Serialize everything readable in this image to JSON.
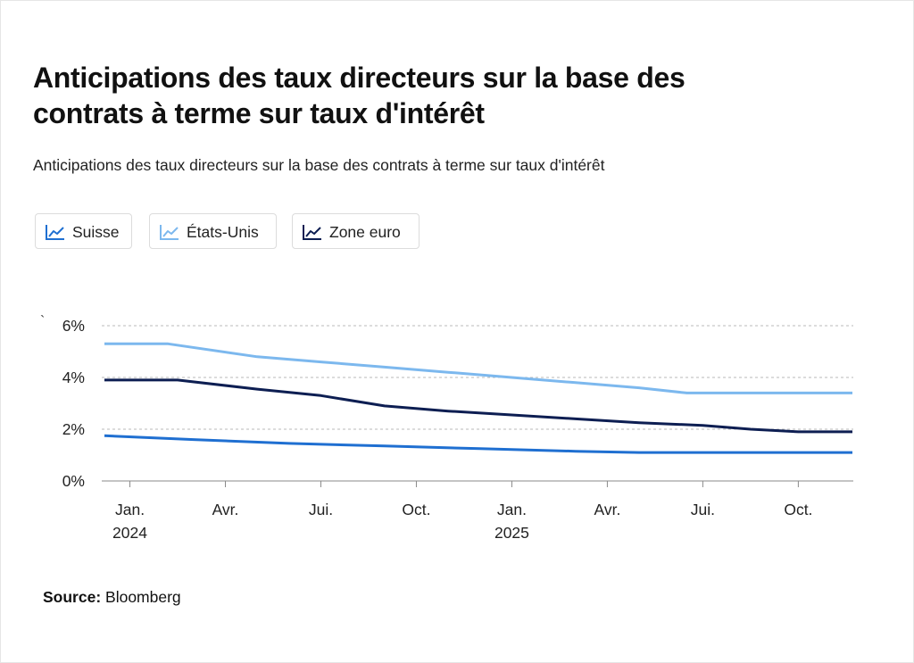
{
  "title": "Anticipations des taux directeurs sur la base des contrats à terme sur taux d'intérêt",
  "subtitle": "Anticipations des taux directeurs sur la base des contrats à terme sur taux d'intérêt",
  "legend": [
    {
      "label": "Suisse",
      "color": "#1f6fd1",
      "icon": "line-chart-icon"
    },
    {
      "label": "États-Unis",
      "color": "#7cb8ee",
      "icon": "line-chart-icon"
    },
    {
      "label": "Zone euro",
      "color": "#0d1e52",
      "icon": "line-chart-icon"
    }
  ],
  "source": {
    "label": "Source:",
    "value": "Bloomberg"
  },
  "chart_data": {
    "type": "line",
    "title": "Anticipations des taux directeurs sur la base des contrats à terme sur taux d'intérêt",
    "stray_mark": "`",
    "y_unit": "%",
    "ylim": [
      0,
      6
    ],
    "y_ticks": [
      {
        "value": 0,
        "label": "0%"
      },
      {
        "value": 2,
        "label": "2%"
      },
      {
        "value": 4,
        "label": "4%"
      },
      {
        "value": 6,
        "label": "6%"
      }
    ],
    "y_grid": "dotted",
    "x_ticks": [
      {
        "month": 1,
        "label": "Jan.",
        "sub": "2024"
      },
      {
        "month": 4,
        "label": "Avr.",
        "sub": ""
      },
      {
        "month": 7,
        "label": "Jui.",
        "sub": ""
      },
      {
        "month": 10,
        "label": "Oct.",
        "sub": ""
      },
      {
        "month": 13,
        "label": "Jan.",
        "sub": "2025"
      },
      {
        "month": 16,
        "label": "Avr.",
        "sub": ""
      },
      {
        "month": 19,
        "label": "Jui.",
        "sub": ""
      },
      {
        "month": 22,
        "label": "Oct.",
        "sub": ""
      }
    ],
    "x_unit": "month index (1 = Jan. 2024)",
    "xlim": [
      0.2,
      23.7
    ],
    "series": [
      {
        "name": "États-Unis",
        "color": "#7cb8ee",
        "x": [
          0.2,
          2.2,
          5.0,
          7.0,
          9.0,
          11.0,
          13.0,
          15.0,
          17.0,
          18.5,
          20.0,
          22.0,
          23.7
        ],
        "y": [
          5.3,
          5.3,
          4.8,
          4.6,
          4.4,
          4.2,
          4.0,
          3.8,
          3.6,
          3.4,
          3.4,
          3.4,
          3.4
        ]
      },
      {
        "name": "Zone euro",
        "color": "#0d1e52",
        "x": [
          0.2,
          2.5,
          5.0,
          7.0,
          9.0,
          11.0,
          13.0,
          15.0,
          17.0,
          19.0,
          20.5,
          22.0,
          23.7
        ],
        "y": [
          3.9,
          3.9,
          3.55,
          3.3,
          2.9,
          2.7,
          2.55,
          2.4,
          2.25,
          2.15,
          2.0,
          1.9,
          1.9
        ]
      },
      {
        "name": "Suisse",
        "color": "#1f6fd1",
        "x": [
          0.2,
          3.0,
          6.0,
          9.0,
          12.0,
          15.0,
          17.0,
          20.0,
          23.7
        ],
        "y": [
          1.75,
          1.6,
          1.45,
          1.35,
          1.25,
          1.15,
          1.1,
          1.1,
          1.1
        ]
      }
    ]
  }
}
